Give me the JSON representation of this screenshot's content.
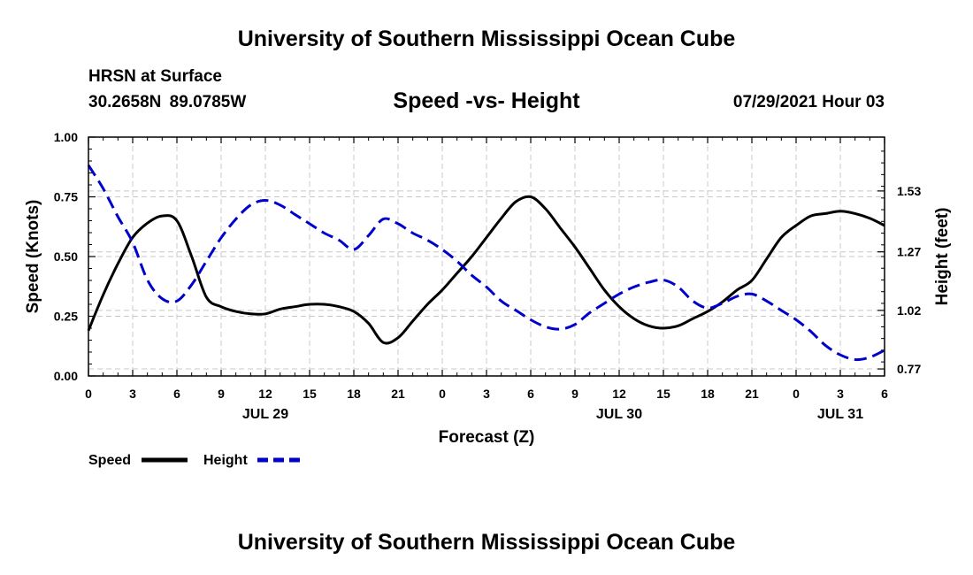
{
  "header": {
    "title": "University of Southern Mississippi Ocean Cube",
    "station_name": "HRSN at Surface",
    "station_coords": "30.2658N  89.0785W",
    "chart_title": "Speed -vs- Height",
    "date": "07/29/2021 Hour 03"
  },
  "footer": {
    "title": "University of Southern Mississippi Ocean Cube"
  },
  "chart_data": {
    "type": "line",
    "title": "Speed -vs- Height",
    "xlabel": "Forecast (Z)",
    "ylabel_left": "Speed (Knots)",
    "ylabel_right": "Height (feet)",
    "x_unit": "forecast hour",
    "xlim": [
      0,
      54
    ],
    "x_tick_values": [
      0,
      3,
      6,
      9,
      12,
      15,
      18,
      21,
      24,
      27,
      30,
      33,
      36,
      39,
      42,
      45,
      48,
      51,
      54
    ],
    "x_tick_labels": [
      "0",
      "3",
      "6",
      "9",
      "12",
      "15",
      "18",
      "21",
      "0",
      "3",
      "6",
      "9",
      "12",
      "15",
      "18",
      "21",
      "0",
      "3",
      "6"
    ],
    "date_labels": [
      {
        "x": 12,
        "label": "JUL 29"
      },
      {
        "x": 36,
        "label": "JUL 30"
      },
      {
        "x": 51,
        "label": "JUL 31"
      }
    ],
    "ylim_left": [
      0,
      1
    ],
    "y_ticks_left": [
      {
        "value": 0,
        "label": "0.00"
      },
      {
        "value": 0.25,
        "label": "0.25"
      },
      {
        "value": 0.5,
        "label": "0.50"
      },
      {
        "value": 0.75,
        "label": "0.75"
      },
      {
        "value": 1,
        "label": "1.00"
      }
    ],
    "ylim_right": [
      0.74,
      1.76
    ],
    "y_ticks_right": [
      {
        "value": 0.77,
        "label": "0.77"
      },
      {
        "value": 1.02,
        "label": "1.02"
      },
      {
        "value": 1.27,
        "label": "1.27"
      },
      {
        "value": 1.53,
        "label": "1.53"
      }
    ],
    "grid": true,
    "series": [
      {
        "name": "Speed",
        "axis": "left",
        "color": "#000000",
        "style": "solid",
        "x": [
          0,
          1,
          2,
          3,
          4,
          5,
          6,
          7,
          8,
          9,
          10,
          11,
          12,
          13,
          14,
          15,
          16,
          17,
          18,
          19,
          20,
          21,
          22,
          23,
          24,
          25,
          26,
          27,
          28,
          29,
          30,
          31,
          32,
          33,
          34,
          35,
          36,
          37,
          38,
          39,
          40,
          41,
          42,
          43,
          44,
          45,
          46,
          47,
          48,
          49,
          50,
          51,
          52,
          53,
          54
        ],
        "values": [
          0.19,
          0.34,
          0.47,
          0.58,
          0.64,
          0.67,
          0.65,
          0.5,
          0.33,
          0.29,
          0.27,
          0.26,
          0.26,
          0.28,
          0.29,
          0.3,
          0.3,
          0.29,
          0.27,
          0.22,
          0.14,
          0.16,
          0.23,
          0.3,
          0.36,
          0.43,
          0.5,
          0.58,
          0.66,
          0.73,
          0.75,
          0.7,
          0.62,
          0.54,
          0.45,
          0.36,
          0.29,
          0.24,
          0.21,
          0.2,
          0.21,
          0.24,
          0.27,
          0.31,
          0.36,
          0.4,
          0.49,
          0.58,
          0.63,
          0.67,
          0.68,
          0.69,
          0.68,
          0.66,
          0.63
        ]
      },
      {
        "name": "Height",
        "axis": "right",
        "color": "#0000cc",
        "style": "dashed",
        "x": [
          0,
          1,
          2,
          3,
          4,
          5,
          6,
          7,
          8,
          9,
          10,
          11,
          12,
          13,
          14,
          15,
          16,
          17,
          18,
          19,
          20,
          21,
          22,
          23,
          24,
          25,
          26,
          27,
          28,
          29,
          30,
          31,
          32,
          33,
          34,
          35,
          36,
          37,
          38,
          39,
          40,
          41,
          42,
          43,
          44,
          45,
          46,
          47,
          48,
          49,
          50,
          51,
          52,
          53,
          54
        ],
        "values": [
          1.64,
          1.54,
          1.42,
          1.31,
          1.15,
          1.07,
          1.06,
          1.13,
          1.23,
          1.33,
          1.41,
          1.47,
          1.49,
          1.47,
          1.43,
          1.39,
          1.35,
          1.32,
          1.28,
          1.34,
          1.41,
          1.39,
          1.35,
          1.32,
          1.28,
          1.23,
          1.17,
          1.12,
          1.06,
          1.02,
          0.98,
          0.95,
          0.94,
          0.96,
          1.01,
          1.05,
          1.09,
          1.12,
          1.14,
          1.15,
          1.12,
          1.06,
          1.03,
          1.05,
          1.08,
          1.09,
          1.06,
          1.02,
          0.98,
          0.93,
          0.87,
          0.83,
          0.81,
          0.82,
          0.85
        ]
      }
    ],
    "legend": {
      "position": "bottom-left",
      "entries": [
        {
          "label": "Speed",
          "color": "#000000",
          "style": "solid"
        },
        {
          "label": "Height",
          "color": "#0000cc",
          "style": "dashed"
        }
      ]
    }
  }
}
